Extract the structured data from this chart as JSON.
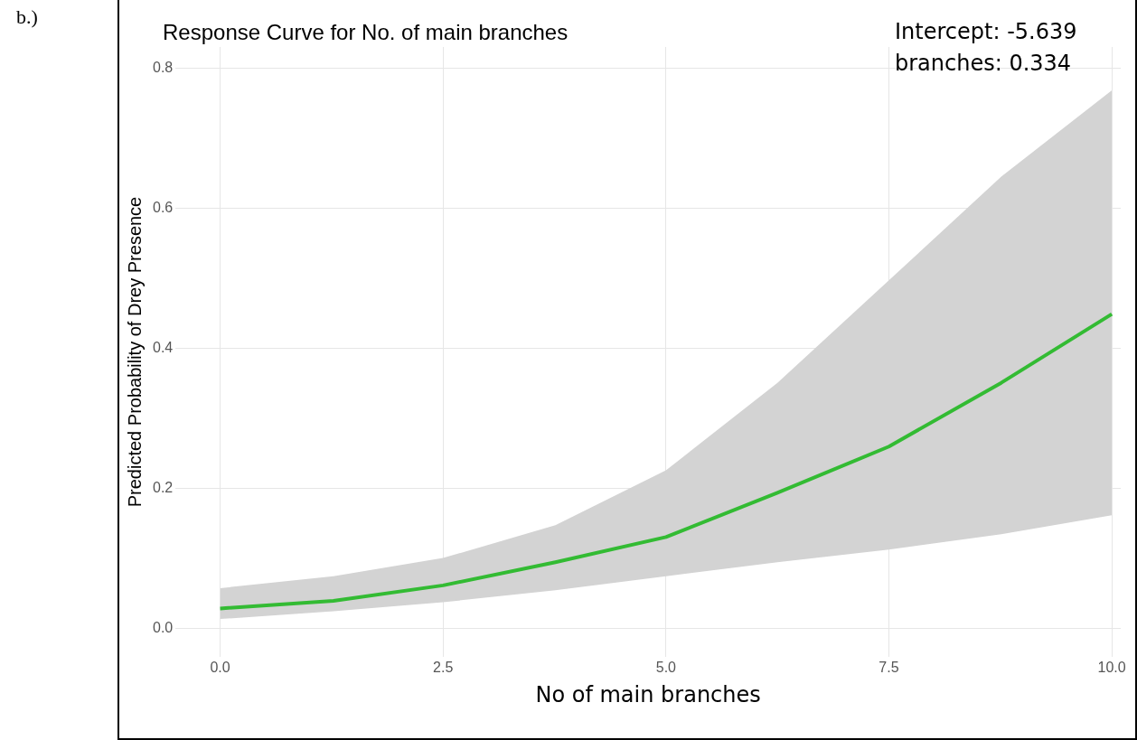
{
  "chart_data": {
    "type": "line",
    "title": "Response Curve for No. of main branches",
    "xlabel": "No of main branches",
    "ylabel": "Predicted Probability of Drey Presence",
    "annotations": [
      "b.)",
      "Intercept: -5.639",
      "branches: 0.334"
    ],
    "series": [
      {
        "color": "#33bb33",
        "x": [
          0,
          1.27,
          2.5,
          3.76,
          5,
          6.25,
          7.5,
          8.76,
          10
        ],
        "values": [
          0.029,
          0.04,
          0.062,
          0.095,
          0.131,
          0.194,
          0.26,
          0.351,
          0.449
        ],
        "lower": [
          0.014,
          0.025,
          0.038,
          0.055,
          0.075,
          0.095,
          0.113,
          0.135,
          0.162
        ],
        "upper": [
          0.058,
          0.075,
          0.101,
          0.148,
          0.226,
          0.351,
          0.497,
          0.645,
          0.768
        ]
      }
    ],
    "xlim": [
      -0.5,
      10.1
    ],
    "ylim": [
      -0.04,
      0.83
    ],
    "xticks": [
      {
        "value": 0,
        "label": "0.0"
      },
      {
        "value": 2.5,
        "label": "2.5"
      },
      {
        "value": 5,
        "label": "5.0"
      },
      {
        "value": 7.5,
        "label": "7.5"
      },
      {
        "value": 10,
        "label": "10.0"
      }
    ],
    "yticks": [
      {
        "value": 0,
        "label": "0.0"
      },
      {
        "value": 0.2,
        "label": "0.2"
      },
      {
        "value": 0.4,
        "label": "0.4"
      },
      {
        "value": 0.6,
        "label": "0.6"
      },
      {
        "value": 0.8,
        "label": "0.8"
      }
    ],
    "grid": true,
    "marker": "none",
    "line_style": "solid"
  }
}
